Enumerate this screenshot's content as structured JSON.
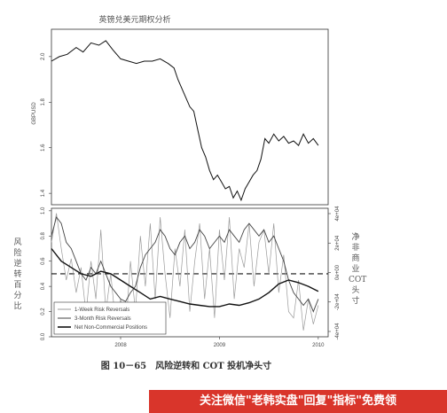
{
  "chart_data": [
    {
      "type": "line",
      "title": "英镑兑美元期权分析",
      "ylabel": "GBPUSD",
      "yticks": [
        "1.4",
        "1.6",
        "1.8",
        "2.0"
      ],
      "ylim": [
        1.35,
        2.12
      ],
      "xlim": [
        2007.3,
        2010.1
      ],
      "grid": false,
      "series": [
        {
          "x": [
            2007.3,
            2007.38,
            2007.46,
            2007.55,
            2007.62,
            2007.7,
            2007.78,
            2007.85,
            2007.92,
            2008.0,
            2008.08,
            2008.16,
            2008.24,
            2008.32,
            2008.4,
            2008.48,
            2008.54,
            2008.58,
            2008.62,
            2008.66,
            2008.7,
            2008.74,
            2008.78,
            2008.82,
            2008.86,
            2008.9,
            2008.94,
            2008.98,
            2009.02,
            2009.06,
            2009.1,
            2009.14,
            2009.18,
            2009.22,
            2009.26,
            2009.3,
            2009.34,
            2009.38,
            2009.42,
            2009.46,
            2009.5,
            2009.55,
            2009.6,
            2009.65,
            2009.7,
            2009.75,
            2009.8,
            2009.85,
            2009.9,
            2009.95,
            2010.0
          ],
          "values": [
            1.98,
            2.0,
            2.01,
            2.04,
            2.02,
            2.06,
            2.05,
            2.07,
            2.03,
            1.99,
            1.98,
            1.97,
            1.98,
            1.98,
            1.99,
            1.97,
            1.95,
            1.9,
            1.86,
            1.82,
            1.78,
            1.76,
            1.68,
            1.6,
            1.56,
            1.5,
            1.46,
            1.48,
            1.45,
            1.42,
            1.43,
            1.38,
            1.41,
            1.37,
            1.42,
            1.45,
            1.48,
            1.5,
            1.55,
            1.64,
            1.62,
            1.66,
            1.63,
            1.65,
            1.62,
            1.63,
            1.61,
            1.66,
            1.62,
            1.64,
            1.61
          ]
        }
      ]
    },
    {
      "type": "line",
      "ylabel": "风险逆转百分比",
      "ylabel_right": "净非商业COT头寸",
      "yticks": [
        "0.0",
        "0.2",
        "0.4",
        "0.6",
        "0.8",
        "1.0"
      ],
      "yticks_right": [
        "-4e+04",
        "-2e+04",
        "0e+00",
        "2e+04",
        "4e+04"
      ],
      "ylim": [
        0,
        1.02
      ],
      "xlim": [
        2007.3,
        2010.1
      ],
      "xticks": [
        "2008",
        "2009",
        "2010"
      ],
      "grid": false,
      "reference_line_y": 0.5,
      "legend": "bottom-left",
      "series": [
        {
          "name": "1-Week Risk Reversals",
          "x": [
            2007.3,
            2007.35,
            2007.4,
            2007.45,
            2007.5,
            2007.55,
            2007.6,
            2007.65,
            2007.7,
            2007.75,
            2007.8,
            2007.85,
            2007.9,
            2007.95,
            2008.0,
            2008.05,
            2008.1,
            2008.15,
            2008.2,
            2008.25,
            2008.3,
            2008.35,
            2008.4,
            2008.45,
            2008.5,
            2008.55,
            2008.6,
            2008.65,
            2008.7,
            2008.75,
            2008.8,
            2008.85,
            2008.9,
            2008.95,
            2009.0,
            2009.05,
            2009.1,
            2009.15,
            2009.2,
            2009.25,
            2009.3,
            2009.35,
            2009.4,
            2009.45,
            2009.5,
            2009.55,
            2009.6,
            2009.65,
            2009.7,
            2009.75,
            2009.8,
            2009.85,
            2009.9,
            2009.95,
            2010.0
          ],
          "values": [
            0.75,
            0.98,
            0.7,
            0.45,
            0.62,
            0.35,
            0.55,
            0.18,
            0.6,
            0.3,
            0.85,
            0.2,
            0.5,
            0.1,
            0.3,
            0.05,
            0.6,
            0.2,
            0.8,
            0.4,
            0.9,
            0.3,
            0.95,
            0.5,
            0.15,
            0.7,
            0.4,
            0.85,
            0.2,
            0.6,
            0.9,
            0.3,
            0.7,
            0.15,
            0.85,
            0.45,
            0.95,
            0.3,
            0.7,
            0.55,
            0.9,
            0.4,
            0.75,
            0.85,
            0.5,
            0.9,
            0.35,
            0.65,
            0.2,
            0.15,
            0.45,
            0.05,
            0.3,
            0.1,
            0.25
          ]
        },
        {
          "name": "3-Month Risk Reversals",
          "x": [
            2007.3,
            2007.35,
            2007.4,
            2007.45,
            2007.5,
            2007.55,
            2007.6,
            2007.65,
            2007.7,
            2007.75,
            2007.8,
            2007.85,
            2007.9,
            2007.95,
            2008.0,
            2008.05,
            2008.1,
            2008.15,
            2008.2,
            2008.25,
            2008.3,
            2008.35,
            2008.4,
            2008.45,
            2008.5,
            2008.55,
            2008.6,
            2008.65,
            2008.7,
            2008.75,
            2008.8,
            2008.85,
            2008.9,
            2008.95,
            2009.0,
            2009.05,
            2009.1,
            2009.15,
            2009.2,
            2009.25,
            2009.3,
            2009.35,
            2009.4,
            2009.45,
            2009.5,
            2009.55,
            2009.6,
            2009.65,
            2009.7,
            2009.75,
            2009.8,
            2009.85,
            2009.9,
            2009.95,
            2010.0
          ],
          "values": [
            0.8,
            0.95,
            0.9,
            0.75,
            0.7,
            0.6,
            0.5,
            0.45,
            0.55,
            0.5,
            0.6,
            0.5,
            0.4,
            0.35,
            0.3,
            0.28,
            0.35,
            0.4,
            0.55,
            0.65,
            0.7,
            0.75,
            0.85,
            0.8,
            0.7,
            0.65,
            0.75,
            0.8,
            0.7,
            0.75,
            0.85,
            0.8,
            0.7,
            0.75,
            0.8,
            0.75,
            0.85,
            0.8,
            0.75,
            0.85,
            0.9,
            0.85,
            0.8,
            0.85,
            0.75,
            0.8,
            0.7,
            0.6,
            0.45,
            0.35,
            0.3,
            0.25,
            0.3,
            0.2,
            0.3
          ]
        },
        {
          "name": "Net Non-Commercial Positions",
          "x": [
            2007.3,
            2007.4,
            2007.5,
            2007.6,
            2007.7,
            2007.8,
            2007.9,
            2008.0,
            2008.1,
            2008.2,
            2008.3,
            2008.4,
            2008.5,
            2008.6,
            2008.7,
            2008.8,
            2008.9,
            2009.0,
            2009.1,
            2009.2,
            2009.3,
            2009.4,
            2009.5,
            2009.6,
            2009.7,
            2009.8,
            2009.9,
            2010.0
          ],
          "values": [
            0.7,
            0.6,
            0.55,
            0.5,
            0.48,
            0.52,
            0.5,
            0.45,
            0.4,
            0.35,
            0.3,
            0.32,
            0.3,
            0.28,
            0.26,
            0.25,
            0.24,
            0.24,
            0.26,
            0.25,
            0.27,
            0.3,
            0.35,
            0.42,
            0.45,
            0.43,
            0.4,
            0.36
          ]
        }
      ]
    }
  ],
  "figure": {
    "caption": "图 10－65　风险逆转和 COT 投机净头寸",
    "left_label": "风险逆转百分比",
    "right_label": "净非商业COT头寸",
    "banner_text": "关注微信\"老韩实盘\"回复\"指标\"免费领"
  },
  "colors": {
    "series_1week": "#9a9a9a",
    "series_3month": "#444444",
    "series_cot": "#111111",
    "price_line": "#111111",
    "banner": "#d9352b"
  }
}
